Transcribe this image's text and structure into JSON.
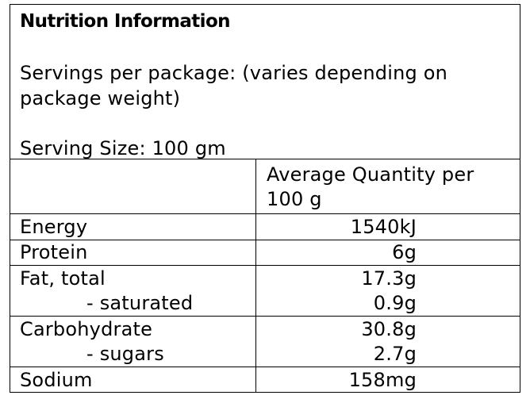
{
  "title": "Nutrition Information",
  "servings_per_package": "Servings per package: (varies depending on package weight)",
  "serving_size": "Serving Size: 100 gm",
  "column_header": "Average Quantity per 100 g",
  "rows": [
    {
      "label": "Energy",
      "value": "1540kJ"
    },
    {
      "label": "Protein",
      "value": "6g"
    },
    {
      "label": "Fat, total",
      "value": "17.3g"
    },
    {
      "label": "- saturated",
      "value": "0.9g"
    },
    {
      "label": "Carbohydrate",
      "value": "30.8g"
    },
    {
      "label": "- sugars",
      "value": "2.7g"
    },
    {
      "label": "Sodium",
      "value": "158mg"
    }
  ]
}
